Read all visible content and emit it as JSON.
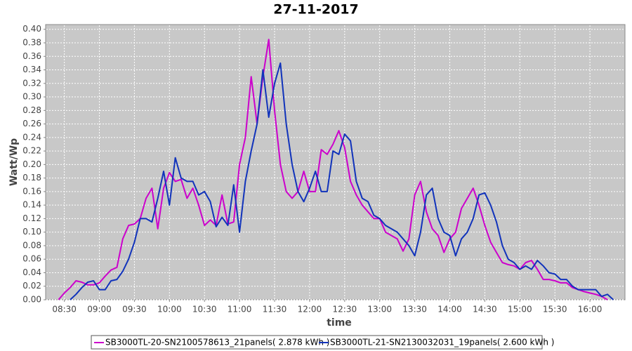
{
  "chart_data": {
    "type": "line",
    "title": "27-11-2017",
    "x_label": "time",
    "y_label": "Watt/Wp",
    "x": [
      "08:25",
      "08:30",
      "08:35",
      "08:40",
      "08:45",
      "08:50",
      "08:55",
      "09:00",
      "09:05",
      "09:10",
      "09:15",
      "09:20",
      "09:25",
      "09:30",
      "09:35",
      "09:40",
      "09:45",
      "09:50",
      "09:55",
      "10:00",
      "10:05",
      "10:10",
      "10:15",
      "10:20",
      "10:25",
      "10:30",
      "10:35",
      "10:40",
      "10:45",
      "10:50",
      "10:55",
      "11:00",
      "11:05",
      "11:10",
      "11:15",
      "11:20",
      "11:25",
      "11:30",
      "11:35",
      "11:40",
      "11:45",
      "11:50",
      "11:55",
      "12:00",
      "12:05",
      "12:10",
      "12:15",
      "12:20",
      "12:25",
      "12:30",
      "12:35",
      "12:40",
      "12:45",
      "12:50",
      "12:55",
      "13:00",
      "13:05",
      "13:10",
      "13:15",
      "13:20",
      "13:25",
      "13:30",
      "13:35",
      "13:40",
      "13:45",
      "13:50",
      "13:55",
      "14:00",
      "14:05",
      "14:10",
      "14:15",
      "14:20",
      "14:25",
      "14:30",
      "14:35",
      "14:40",
      "14:45",
      "14:50",
      "14:55",
      "15:00",
      "15:05",
      "15:10",
      "15:15",
      "15:20",
      "15:25",
      "15:30",
      "15:35",
      "15:40",
      "15:45",
      "15:50",
      "15:55",
      "16:00",
      "16:05",
      "16:10",
      "16:15",
      "16:20"
    ],
    "series": [
      {
        "name": "SB3000TL-20-SN2100578613_21panels( 2.878 kWh )",
        "color": "#cc00cc",
        "values": [
          0.0,
          0.01,
          0.018,
          0.028,
          0.026,
          0.022,
          0.022,
          0.025,
          0.035,
          0.044,
          0.048,
          0.09,
          0.11,
          0.112,
          0.12,
          0.15,
          0.165,
          0.105,
          0.165,
          0.188,
          0.175,
          0.178,
          0.15,
          0.165,
          0.14,
          0.11,
          0.118,
          0.11,
          0.155,
          0.112,
          0.115,
          0.2,
          0.24,
          0.33,
          0.26,
          0.33,
          0.385,
          0.28,
          0.2,
          0.16,
          0.15,
          0.16,
          0.19,
          0.16,
          0.16,
          0.222,
          0.215,
          0.23,
          0.25,
          0.225,
          0.175,
          0.155,
          0.14,
          0.13,
          0.12,
          0.12,
          0.1,
          0.095,
          0.09,
          0.072,
          0.09,
          0.155,
          0.175,
          0.13,
          0.105,
          0.095,
          0.07,
          0.09,
          0.1,
          0.135,
          0.15,
          0.165,
          0.14,
          0.11,
          0.085,
          0.07,
          0.055,
          0.052,
          0.05,
          0.045,
          0.055,
          0.058,
          0.045,
          0.03,
          0.03,
          0.028,
          0.025,
          0.025,
          0.018,
          0.015,
          0.012,
          0.01,
          0.008,
          0.005,
          0.0,
          null
        ]
      },
      {
        "name": "SB3000TL-21-SN2130032031_19panels( 2.600 kWh )",
        "color": "#1133bb",
        "values": [
          null,
          null,
          0.0,
          0.008,
          0.018,
          0.026,
          0.028,
          0.015,
          0.015,
          0.028,
          0.03,
          0.042,
          0.06,
          0.085,
          0.12,
          0.12,
          0.115,
          0.15,
          0.19,
          0.14,
          0.21,
          0.18,
          0.175,
          0.175,
          0.155,
          0.16,
          0.145,
          0.108,
          0.122,
          0.11,
          0.17,
          0.1,
          0.175,
          0.22,
          0.26,
          0.34,
          0.27,
          0.32,
          0.35,
          0.26,
          0.2,
          0.16,
          0.145,
          0.165,
          0.19,
          0.16,
          0.16,
          0.22,
          0.215,
          0.245,
          0.235,
          0.175,
          0.15,
          0.145,
          0.125,
          0.12,
          0.11,
          0.105,
          0.1,
          0.09,
          0.08,
          0.065,
          0.1,
          0.155,
          0.165,
          0.12,
          0.1,
          0.095,
          0.065,
          0.09,
          0.1,
          0.12,
          0.155,
          0.158,
          0.14,
          0.115,
          0.08,
          0.06,
          0.055,
          0.045,
          0.05,
          0.045,
          0.058,
          0.05,
          0.04,
          0.038,
          0.03,
          0.03,
          0.02,
          0.015,
          0.015,
          0.015,
          0.015,
          0.005,
          0.008,
          0.0
        ]
      }
    ],
    "xlim": [
      "08:14",
      "16:30"
    ],
    "xticks": [
      "08:30",
      "09:00",
      "09:30",
      "10:00",
      "10:30",
      "11:00",
      "11:30",
      "12:00",
      "12:30",
      "13:00",
      "13:30",
      "14:00",
      "14:30",
      "15:00",
      "15:30",
      "16:00"
    ],
    "ylim": [
      0,
      0.407
    ],
    "yticks": [
      {
        "value": 0,
        "label": "0.00"
      },
      {
        "value": 0.02,
        "label": "0.02"
      },
      {
        "value": 0.04,
        "label": "0.04"
      },
      {
        "value": 0.06,
        "label": "0.06"
      },
      {
        "value": 0.08,
        "label": "0.08"
      },
      {
        "value": 0.1,
        "label": "0.10"
      },
      {
        "value": 0.12,
        "label": "0.12"
      },
      {
        "value": 0.14,
        "label": "0.14"
      },
      {
        "value": 0.16,
        "label": "0.16"
      },
      {
        "value": 0.18,
        "label": "0.18"
      },
      {
        "value": 0.2,
        "label": "0.20"
      },
      {
        "value": 0.22,
        "label": "0.22"
      },
      {
        "value": 0.24,
        "label": "0.24"
      },
      {
        "value": 0.26,
        "label": "0.26"
      },
      {
        "value": 0.28,
        "label": "0.28"
      },
      {
        "value": 0.3,
        "label": "0.30"
      },
      {
        "value": 0.32,
        "label": "0.32"
      },
      {
        "value": 0.34,
        "label": "0.34"
      },
      {
        "value": 0.36,
        "label": "0.36"
      },
      {
        "value": 0.38,
        "label": "0.38"
      },
      {
        "value": 0.4,
        "label": "0.40"
      }
    ],
    "grid": true,
    "legend": "bottom"
  }
}
